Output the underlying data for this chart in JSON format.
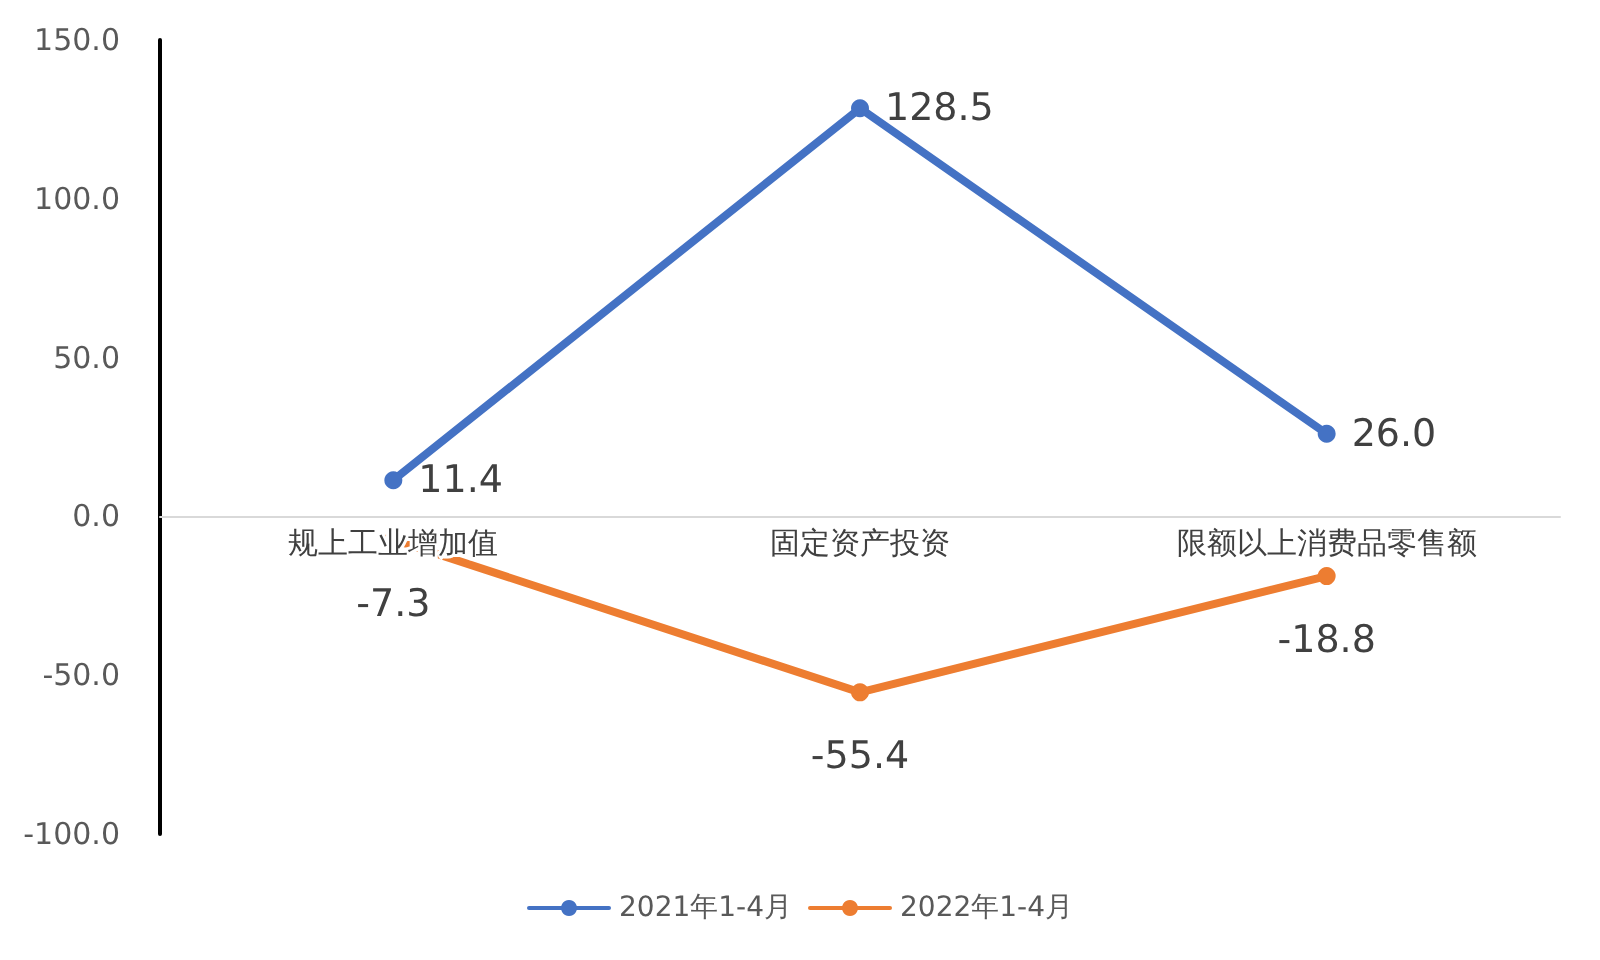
{
  "chart_data": {
    "type": "line",
    "categories": [
      "规上工业增加值",
      "固定资产投资",
      "限额以上消费品零售额"
    ],
    "series": [
      {
        "name": "2021年1-4月",
        "color": "#4472c4",
        "values": [
          11.4,
          128.5,
          26.0
        ],
        "value_labels": [
          "11.4",
          "128.5",
          "26.0"
        ]
      },
      {
        "name": "2022年1-4月",
        "color": "#ed7d31",
        "values": [
          -7.3,
          -55.4,
          -18.8
        ],
        "value_labels": [
          "-7.3",
          "-55.4",
          "-18.8"
        ]
      }
    ],
    "ylim": [
      -100,
      150
    ],
    "yticks": [
      {
        "value": -100,
        "label": "-100.0"
      },
      {
        "value": -50,
        "label": "-50.0"
      },
      {
        "value": 0,
        "label": "0.0"
      },
      {
        "value": 50,
        "label": "50.0"
      },
      {
        "value": 100,
        "label": "100.0"
      },
      {
        "value": 150,
        "label": "150.0"
      }
    ],
    "grid": false,
    "legend": "bottom",
    "marker": "circle",
    "line_style": "solid"
  }
}
